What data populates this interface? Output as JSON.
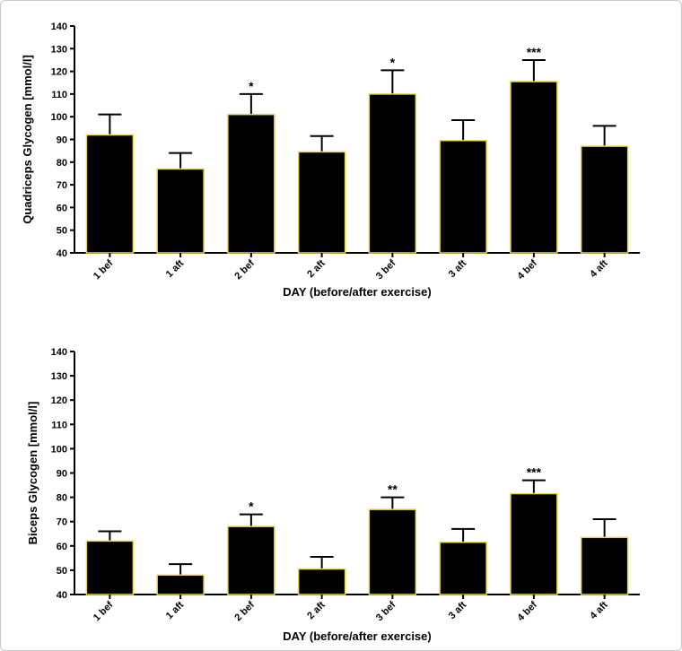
{
  "chart_data": [
    {
      "type": "bar",
      "categories": [
        "1 bef",
        "1 aft",
        "2 bef",
        "2 aft",
        "3 bef",
        "3 aft",
        "4 bef",
        "4 aft"
      ],
      "values": [
        92,
        77,
        101,
        84.5,
        110,
        89.5,
        115.5,
        87
      ],
      "error_upper": [
        101,
        84,
        110,
        91.5,
        120.5,
        98.5,
        125,
        96
      ],
      "annotations": [
        "",
        "",
        "*",
        "",
        "*",
        "",
        "***",
        ""
      ],
      "xlabel": "DAY (before/after exercise)",
      "ylabel": "Quadriceps Glycogen [mmol/l]",
      "ylim": [
        40,
        140
      ],
      "yticks": [
        40,
        50,
        60,
        70,
        80,
        90,
        100,
        110,
        120,
        130,
        140
      ],
      "grid": false,
      "bar_color": "#000000",
      "bar_outline_color": "#e8d84a"
    },
    {
      "type": "bar",
      "categories": [
        "1 bef",
        "1 aft",
        "2 bef",
        "2 aft",
        "3 bef",
        "3 aft",
        "4 bef",
        "4 aft"
      ],
      "values": [
        62,
        48,
        68,
        50.5,
        75,
        61.5,
        81.5,
        63.5
      ],
      "error_upper": [
        66,
        52.5,
        73,
        55.5,
        80,
        67,
        87,
        71
      ],
      "annotations": [
        "",
        "",
        "*",
        "",
        "**",
        "",
        "***",
        ""
      ],
      "xlabel": "DAY (before/after exercise)",
      "ylabel": "Biceps Glycogen [mmol/l]",
      "ylim": [
        40,
        140
      ],
      "yticks": [
        40,
        50,
        60,
        70,
        80,
        90,
        100,
        110,
        120,
        130,
        140
      ],
      "grid": false,
      "bar_color": "#000000",
      "bar_outline_color": "#e8d84a"
    }
  ]
}
